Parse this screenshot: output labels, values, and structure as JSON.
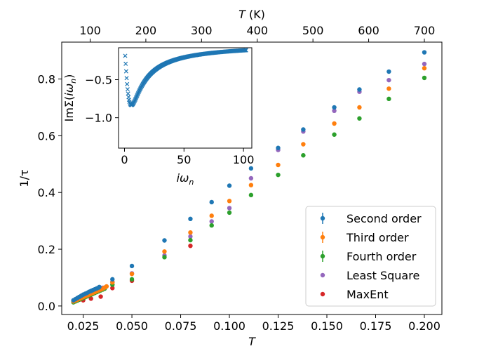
{
  "colors": {
    "c0": "#1f77b4",
    "c1": "#ff7f0e",
    "c2": "#2ca02c",
    "c3": "#9467bd",
    "c4": "#d62728"
  },
  "chart_data": {
    "type": "scatter",
    "xlabel": "T",
    "ylabel": "1/τ",
    "xlim": [
      0.014,
      0.209
    ],
    "ylim": [
      -0.03,
      0.93
    ],
    "x_ticks": [
      0.025,
      0.05,
      0.075,
      0.1,
      0.125,
      0.15,
      0.175,
      0.2
    ],
    "x_tick_labels": [
      "0.025",
      "0.050",
      "0.075",
      "0.100",
      "0.125",
      "0.150",
      "0.175",
      "0.200"
    ],
    "y_ticks": [
      0.0,
      0.2,
      0.4,
      0.6,
      0.8
    ],
    "y_tick_labels": [
      "0.0",
      "0.2",
      "0.4",
      "0.6",
      "0.8"
    ],
    "top_axis": {
      "label": "T (K)",
      "label_italic": "T",
      "label_rest": " (K)",
      "ticks": [
        100,
        200,
        300,
        400,
        500,
        600,
        700
      ],
      "tick_labels": [
        "100",
        "200",
        "300",
        "400",
        "500",
        "600",
        "700"
      ],
      "kelvin_per_unit": 3500
    },
    "legend_position": "lower right",
    "series": [
      {
        "name": "Second order",
        "color_key": "c0",
        "errorbar": true,
        "x": [
          0.02,
          0.021,
          0.022,
          0.023,
          0.024,
          0.025,
          0.026,
          0.027,
          0.028,
          0.029,
          0.03,
          0.031,
          0.032,
          0.033,
          0.0333,
          0.04,
          0.05,
          0.0667,
          0.08,
          0.0909,
          0.1,
          0.1111,
          0.125,
          0.1379,
          0.1538,
          0.1667,
          0.1818,
          0.2
        ],
        "y": [
          0.02,
          0.024,
          0.028,
          0.032,
          0.036,
          0.04,
          0.043,
          0.046,
          0.05,
          0.053,
          0.056,
          0.059,
          0.062,
          0.065,
          0.067,
          0.094,
          0.141,
          0.231,
          0.307,
          0.366,
          0.424,
          0.485,
          0.557,
          0.622,
          0.7,
          0.763,
          0.826,
          0.894
        ]
      },
      {
        "name": "Third order",
        "color_key": "c1",
        "errorbar": true,
        "x": [
          0.02,
          0.021,
          0.022,
          0.023,
          0.024,
          0.025,
          0.026,
          0.027,
          0.028,
          0.029,
          0.03,
          0.031,
          0.032,
          0.033,
          0.034,
          0.035,
          0.036,
          0.037,
          0.04,
          0.05,
          0.0667,
          0.08,
          0.0909,
          0.1,
          0.1111,
          0.125,
          0.1379,
          0.1538,
          0.1667,
          0.1818,
          0.2
        ],
        "y": [
          0.016,
          0.019,
          0.022,
          0.025,
          0.028,
          0.031,
          0.034,
          0.037,
          0.04,
          0.043,
          0.046,
          0.049,
          0.052,
          0.055,
          0.058,
          0.061,
          0.065,
          0.069,
          0.083,
          0.113,
          0.192,
          0.259,
          0.318,
          0.37,
          0.426,
          0.497,
          0.57,
          0.643,
          0.7,
          0.766,
          0.838
        ]
      },
      {
        "name": "Fourth order",
        "color_key": "c2",
        "errorbar": true,
        "x": [
          0.02,
          0.021,
          0.022,
          0.023,
          0.024,
          0.025,
          0.026,
          0.027,
          0.028,
          0.029,
          0.03,
          0.031,
          0.032,
          0.033,
          0.034,
          0.035,
          0.036,
          0.04,
          0.05,
          0.0667,
          0.08,
          0.0909,
          0.1,
          0.1111,
          0.125,
          0.1379,
          0.1538,
          0.1667,
          0.1818,
          0.2
        ],
        "y": [
          0.013,
          0.016,
          0.019,
          0.022,
          0.025,
          0.028,
          0.031,
          0.034,
          0.037,
          0.04,
          0.043,
          0.046,
          0.049,
          0.052,
          0.055,
          0.058,
          0.061,
          0.075,
          0.094,
          0.172,
          0.232,
          0.284,
          0.329,
          0.391,
          0.462,
          0.531,
          0.604,
          0.661,
          0.73,
          0.804
        ]
      },
      {
        "name": "Least Square",
        "color_key": "c3",
        "errorbar": false,
        "x": [
          0.02,
          0.025,
          0.03,
          0.035,
          0.04,
          0.05,
          0.0667,
          0.08,
          0.0909,
          0.1,
          0.1111,
          0.125,
          0.1379,
          0.1538,
          0.1667,
          0.1818,
          0.2
        ],
        "y": [
          0.018,
          0.035,
          0.05,
          0.064,
          0.085,
          0.115,
          0.178,
          0.245,
          0.298,
          0.345,
          0.45,
          0.55,
          0.615,
          0.688,
          0.755,
          0.796,
          0.853
        ]
      },
      {
        "name": "MaxEnt",
        "color_key": "c4",
        "errorbar": false,
        "x": [
          0.025,
          0.029,
          0.034,
          0.04,
          0.05,
          0.08
        ],
        "y": [
          0.02,
          0.026,
          0.033,
          0.063,
          0.089,
          0.212
        ]
      }
    ],
    "inset": {
      "type": "scatter",
      "marker": "x",
      "color_key": "c0",
      "xlabel": "iω_n",
      "xlabel_italic": "iω",
      "xlabel_sub": "n",
      "ylabel": "ImΣ(iω_n)",
      "ylabel_prefix": "ImΣ(",
      "ylabel_italic": "iω",
      "ylabel_sub": "n",
      "ylabel_suffix": ")",
      "xlim": [
        -5,
        107
      ],
      "ylim": [
        -1.4,
        -0.08
      ],
      "x_ticks": [
        0,
        50,
        100
      ],
      "x_tick_labels": [
        "0",
        "50",
        "100"
      ],
      "y_ticks": [
        -1.0,
        -0.5
      ],
      "y_tick_labels": [
        "−1.0",
        "−0.5"
      ],
      "x_start": 0.2,
      "x_step": 0.4,
      "count": 256,
      "curve": "ImΣ = −(a·w)/(w² + b) − 0.02 with a=9.5, b=34",
      "params": {
        "a": 9.5,
        "b": 34,
        "c": -0.02
      }
    }
  }
}
